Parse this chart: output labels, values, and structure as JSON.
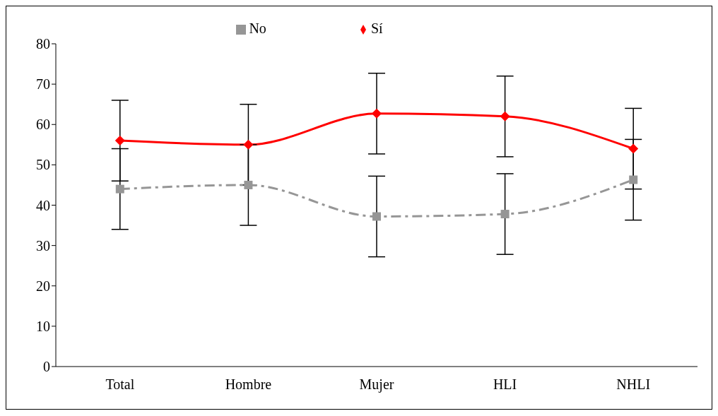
{
  "chart_data": {
    "type": "line",
    "categories": [
      "Total",
      "Hombre",
      "Mujer",
      "HLI",
      "NHLI"
    ],
    "series": [
      {
        "name": "Sí",
        "color": "#ff0000",
        "marker": "diamond",
        "line_style": "solid",
        "values": [
          56,
          55,
          62.7,
          62,
          54
        ],
        "errors": [
          10,
          10,
          10,
          10,
          10
        ]
      },
      {
        "name": "No",
        "color": "#969696",
        "marker": "square",
        "line_style": "dashed",
        "values": [
          44,
          45,
          37.2,
          37.8,
          46.3
        ],
        "errors": [
          10,
          10,
          10,
          10,
          10
        ]
      }
    ],
    "ylim": [
      0,
      80
    ],
    "yticks": [
      0,
      10,
      20,
      30,
      40,
      50,
      60,
      70,
      80
    ],
    "grid": false,
    "legend": "top"
  }
}
